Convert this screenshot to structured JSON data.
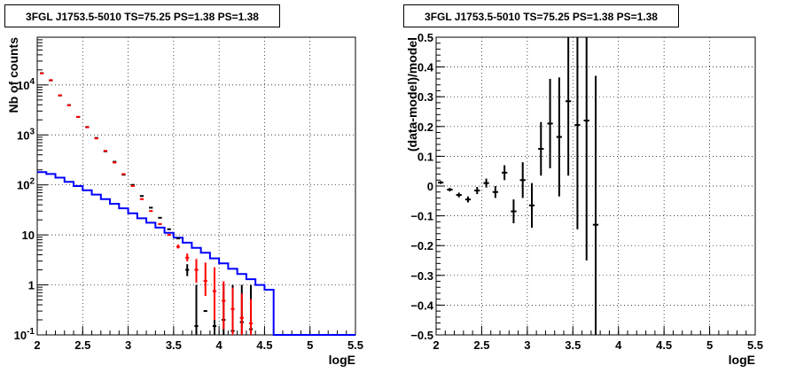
{
  "chart_data": [
    {
      "type": "histogram",
      "title": "3FGL J1753.5-5010 TS=75.25 PS=1.38 PS=1.38",
      "xlabel": "logE",
      "ylabel": "Nb of counts",
      "xlim": [
        2,
        5.5
      ],
      "ylim": [
        0.1,
        90000
      ],
      "yscale": "log",
      "grid": true,
      "xticks": [
        "2",
        "2.5",
        "3",
        "3.5",
        "4",
        "4.5",
        "5",
        "5.5"
      ],
      "yticks": [
        "10^{-1}",
        "1",
        "10",
        "10^{2}",
        "10^{3}",
        "10^{4}"
      ],
      "bin_edges": [
        2.0,
        2.1,
        2.2,
        2.3,
        2.4,
        2.5,
        2.6,
        2.7,
        2.8,
        2.9,
        3.0,
        3.1,
        3.2,
        3.3,
        3.4,
        3.5,
        3.6,
        3.7,
        3.8,
        3.9,
        4.0,
        4.1,
        4.2,
        4.3,
        4.4,
        4.5,
        4.6,
        4.7,
        4.8,
        4.9,
        5.0,
        5.1,
        5.2,
        5.3,
        5.4,
        5.5
      ],
      "series": [
        {
          "color": "#0000ff",
          "style": "step",
          "values": [
            180,
            165,
            140,
            115,
            95,
            78,
            64,
            52,
            42,
            34,
            27,
            21.5,
            17.5,
            14,
            11,
            8.8,
            7.0,
            5.5,
            4.4,
            3.4,
            2.7,
            2.1,
            1.65,
            1.3,
            1.0,
            0.8,
            0.1,
            0.1,
            0.1,
            0.1,
            0.1,
            0.1,
            0.1,
            0.1,
            0.1
          ]
        },
        {
          "color": "#ff0000",
          "style": "points",
          "values": [
            17000,
            12500,
            6200,
            3900,
            2300,
            1420,
            850,
            480,
            280,
            165,
            95,
            52,
            30,
            16.5,
            10,
            5.8,
            3.5,
            2.0,
            1.2,
            0.75,
            0.48,
            0.33,
            0.22,
            0.17
          ],
          "err_lo": [
            0,
            0,
            0,
            0,
            0,
            0,
            0,
            0,
            0,
            0,
            0,
            0,
            0.18,
            0.3,
            0.4,
            0.45,
            0.55,
            0.9,
            0.6,
            0.55,
            0.35,
            0.25,
            0.15,
            0.08
          ],
          "err_hi": [
            0,
            0,
            0,
            0,
            0,
            0,
            0,
            0,
            0,
            0,
            0,
            0,
            0.22,
            0.35,
            0.5,
            0.6,
            0.75,
            1.3,
            1.6,
            1.5,
            0.7,
            0.55,
            0.45,
            0.35
          ]
        },
        {
          "color": "#000000",
          "style": "points",
          "values": [
            17200,
            12300,
            6150,
            3950,
            2280,
            1440,
            870,
            470,
            290,
            160,
            100,
            60,
            35,
            22,
            13,
            8.5,
            2.0,
            0.15,
            0.3,
            0.15,
            0.2,
            0.12,
            0.18,
            0.13
          ],
          "err_lo": [
            0,
            0,
            0,
            0,
            0,
            0,
            0,
            0,
            0,
            0,
            0,
            0,
            0,
            0.2,
            0.25,
            0.3,
            0.5,
            0,
            0,
            0,
            0,
            0,
            0,
            0
          ],
          "err_hi": [
            0,
            0,
            0,
            0,
            0,
            0,
            0,
            0,
            0,
            0,
            0,
            0,
            0,
            0.25,
            0.3,
            0.4,
            0.6,
            0,
            0,
            0,
            0,
            0,
            0,
            0
          ]
        }
      ]
    },
    {
      "type": "scatter",
      "title": "3FGL J1753.5-5010 TS=75.25 PS=1.38 PS=1.38",
      "xlabel": "logE",
      "ylabel": "(data-model)/model",
      "xlim": [
        2,
        5.5
      ],
      "ylim": [
        -0.5,
        0.5
      ],
      "grid": true,
      "xticks": [
        "2",
        "2.5",
        "3",
        "3.5",
        "4",
        "4.5",
        "5",
        "5.5"
      ],
      "yticks": [
        "−0.5",
        "−0.4",
        "−0.3",
        "−0.2",
        "−0.1",
        "0",
        "0.1",
        "0.2",
        "0.3",
        "0.4",
        "0.5"
      ],
      "series": [
        {
          "color": "#000000",
          "x": [
            2.05,
            2.15,
            2.25,
            2.35,
            2.45,
            2.55,
            2.65,
            2.75,
            2.85,
            2.95,
            3.05,
            3.15,
            3.25,
            3.35,
            3.45,
            3.55,
            3.65,
            3.75
          ],
          "y": [
            0.012,
            -0.012,
            -0.03,
            -0.045,
            -0.015,
            0.01,
            -0.02,
            0.045,
            -0.085,
            0.02,
            -0.065,
            0.125,
            0.21,
            0.165,
            0.285,
            0.205,
            0.22,
            -0.13
          ],
          "err": [
            0.005,
            0.006,
            0.008,
            0.01,
            0.012,
            0.015,
            0.02,
            0.025,
            0.04,
            0.06,
            0.075,
            0.09,
            0.15,
            0.2,
            0.25,
            0.35,
            0.47,
            0.5
          ]
        }
      ]
    }
  ]
}
